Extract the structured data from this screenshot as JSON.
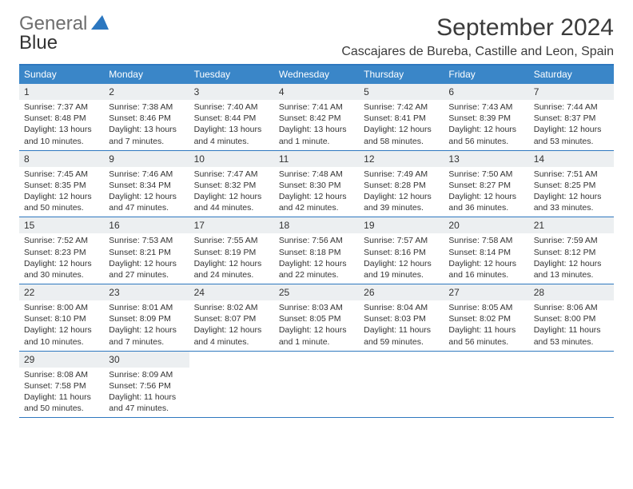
{
  "brand": {
    "part1": "General",
    "part2": "Blue"
  },
  "title": "September 2024",
  "location": "Cascajares de Bureba, Castille and Leon, Spain",
  "colors": {
    "header_bg": "#3a86c8",
    "header_text": "#ffffff",
    "rule": "#2e78bf",
    "daynum_bg": "#eceff1",
    "text": "#333333",
    "brand_gray": "#6e6e6e",
    "brand_blue": "#2b77c0",
    "background": "#ffffff"
  },
  "typography": {
    "title_fontsize": 30,
    "location_fontsize": 16,
    "dow_fontsize": 12,
    "daynum_fontsize": 12,
    "body_fontsize": 10.5
  },
  "days_of_week": [
    "Sunday",
    "Monday",
    "Tuesday",
    "Wednesday",
    "Thursday",
    "Friday",
    "Saturday"
  ],
  "weeks": [
    [
      {
        "n": "1",
        "sunrise": "Sunrise: 7:37 AM",
        "sunset": "Sunset: 8:48 PM",
        "daylight": "Daylight: 13 hours and 10 minutes."
      },
      {
        "n": "2",
        "sunrise": "Sunrise: 7:38 AM",
        "sunset": "Sunset: 8:46 PM",
        "daylight": "Daylight: 13 hours and 7 minutes."
      },
      {
        "n": "3",
        "sunrise": "Sunrise: 7:40 AM",
        "sunset": "Sunset: 8:44 PM",
        "daylight": "Daylight: 13 hours and 4 minutes."
      },
      {
        "n": "4",
        "sunrise": "Sunrise: 7:41 AM",
        "sunset": "Sunset: 8:42 PM",
        "daylight": "Daylight: 13 hours and 1 minute."
      },
      {
        "n": "5",
        "sunrise": "Sunrise: 7:42 AM",
        "sunset": "Sunset: 8:41 PM",
        "daylight": "Daylight: 12 hours and 58 minutes."
      },
      {
        "n": "6",
        "sunrise": "Sunrise: 7:43 AM",
        "sunset": "Sunset: 8:39 PM",
        "daylight": "Daylight: 12 hours and 56 minutes."
      },
      {
        "n": "7",
        "sunrise": "Sunrise: 7:44 AM",
        "sunset": "Sunset: 8:37 PM",
        "daylight": "Daylight: 12 hours and 53 minutes."
      }
    ],
    [
      {
        "n": "8",
        "sunrise": "Sunrise: 7:45 AM",
        "sunset": "Sunset: 8:35 PM",
        "daylight": "Daylight: 12 hours and 50 minutes."
      },
      {
        "n": "9",
        "sunrise": "Sunrise: 7:46 AM",
        "sunset": "Sunset: 8:34 PM",
        "daylight": "Daylight: 12 hours and 47 minutes."
      },
      {
        "n": "10",
        "sunrise": "Sunrise: 7:47 AM",
        "sunset": "Sunset: 8:32 PM",
        "daylight": "Daylight: 12 hours and 44 minutes."
      },
      {
        "n": "11",
        "sunrise": "Sunrise: 7:48 AM",
        "sunset": "Sunset: 8:30 PM",
        "daylight": "Daylight: 12 hours and 42 minutes."
      },
      {
        "n": "12",
        "sunrise": "Sunrise: 7:49 AM",
        "sunset": "Sunset: 8:28 PM",
        "daylight": "Daylight: 12 hours and 39 minutes."
      },
      {
        "n": "13",
        "sunrise": "Sunrise: 7:50 AM",
        "sunset": "Sunset: 8:27 PM",
        "daylight": "Daylight: 12 hours and 36 minutes."
      },
      {
        "n": "14",
        "sunrise": "Sunrise: 7:51 AM",
        "sunset": "Sunset: 8:25 PM",
        "daylight": "Daylight: 12 hours and 33 minutes."
      }
    ],
    [
      {
        "n": "15",
        "sunrise": "Sunrise: 7:52 AM",
        "sunset": "Sunset: 8:23 PM",
        "daylight": "Daylight: 12 hours and 30 minutes."
      },
      {
        "n": "16",
        "sunrise": "Sunrise: 7:53 AM",
        "sunset": "Sunset: 8:21 PM",
        "daylight": "Daylight: 12 hours and 27 minutes."
      },
      {
        "n": "17",
        "sunrise": "Sunrise: 7:55 AM",
        "sunset": "Sunset: 8:19 PM",
        "daylight": "Daylight: 12 hours and 24 minutes."
      },
      {
        "n": "18",
        "sunrise": "Sunrise: 7:56 AM",
        "sunset": "Sunset: 8:18 PM",
        "daylight": "Daylight: 12 hours and 22 minutes."
      },
      {
        "n": "19",
        "sunrise": "Sunrise: 7:57 AM",
        "sunset": "Sunset: 8:16 PM",
        "daylight": "Daylight: 12 hours and 19 minutes."
      },
      {
        "n": "20",
        "sunrise": "Sunrise: 7:58 AM",
        "sunset": "Sunset: 8:14 PM",
        "daylight": "Daylight: 12 hours and 16 minutes."
      },
      {
        "n": "21",
        "sunrise": "Sunrise: 7:59 AM",
        "sunset": "Sunset: 8:12 PM",
        "daylight": "Daylight: 12 hours and 13 minutes."
      }
    ],
    [
      {
        "n": "22",
        "sunrise": "Sunrise: 8:00 AM",
        "sunset": "Sunset: 8:10 PM",
        "daylight": "Daylight: 12 hours and 10 minutes."
      },
      {
        "n": "23",
        "sunrise": "Sunrise: 8:01 AM",
        "sunset": "Sunset: 8:09 PM",
        "daylight": "Daylight: 12 hours and 7 minutes."
      },
      {
        "n": "24",
        "sunrise": "Sunrise: 8:02 AM",
        "sunset": "Sunset: 8:07 PM",
        "daylight": "Daylight: 12 hours and 4 minutes."
      },
      {
        "n": "25",
        "sunrise": "Sunrise: 8:03 AM",
        "sunset": "Sunset: 8:05 PM",
        "daylight": "Daylight: 12 hours and 1 minute."
      },
      {
        "n": "26",
        "sunrise": "Sunrise: 8:04 AM",
        "sunset": "Sunset: 8:03 PM",
        "daylight": "Daylight: 11 hours and 59 minutes."
      },
      {
        "n": "27",
        "sunrise": "Sunrise: 8:05 AM",
        "sunset": "Sunset: 8:02 PM",
        "daylight": "Daylight: 11 hours and 56 minutes."
      },
      {
        "n": "28",
        "sunrise": "Sunrise: 8:06 AM",
        "sunset": "Sunset: 8:00 PM",
        "daylight": "Daylight: 11 hours and 53 minutes."
      }
    ],
    [
      {
        "n": "29",
        "sunrise": "Sunrise: 8:08 AM",
        "sunset": "Sunset: 7:58 PM",
        "daylight": "Daylight: 11 hours and 50 minutes."
      },
      {
        "n": "30",
        "sunrise": "Sunrise: 8:09 AM",
        "sunset": "Sunset: 7:56 PM",
        "daylight": "Daylight: 11 hours and 47 minutes."
      },
      null,
      null,
      null,
      null,
      null
    ]
  ]
}
